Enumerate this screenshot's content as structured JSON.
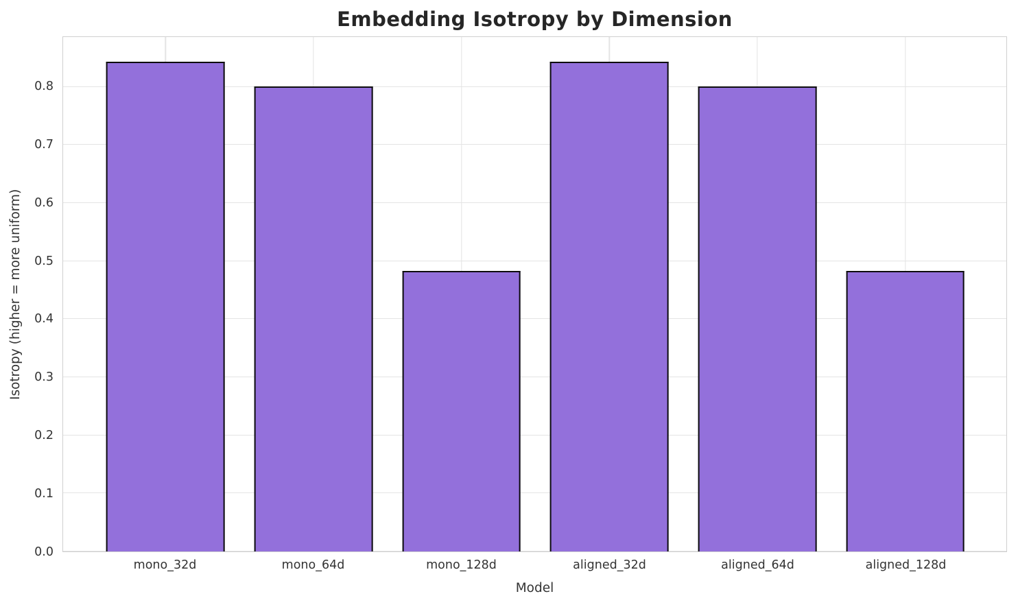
{
  "chart_data": {
    "type": "bar",
    "title": "Embedding Isotropy by Dimension",
    "xlabel": "Model",
    "ylabel": "Isotropy (higher = more uniform)",
    "categories": [
      "mono_32d",
      "mono_64d",
      "mono_128d",
      "aligned_32d",
      "aligned_64d",
      "aligned_128d"
    ],
    "values": [
      0.843,
      0.801,
      0.483,
      0.843,
      0.801,
      0.483
    ],
    "yticks": [
      0.0,
      0.1,
      0.2,
      0.3,
      0.4,
      0.5,
      0.6,
      0.7,
      0.8
    ],
    "ytick_labels": [
      "0.0",
      "0.1",
      "0.2",
      "0.3",
      "0.4",
      "0.5",
      "0.6",
      "0.7",
      "0.8"
    ],
    "ylim": [
      0,
      0.886
    ],
    "grid": "on",
    "legend": "none",
    "bar_color": "#9370DB",
    "bar_edge_color": "#0d0d0d",
    "grid_color": "#e4e4e4",
    "spine_color": "#d0d0d0",
    "text_color": "#333333",
    "title_color": "#262626"
  }
}
